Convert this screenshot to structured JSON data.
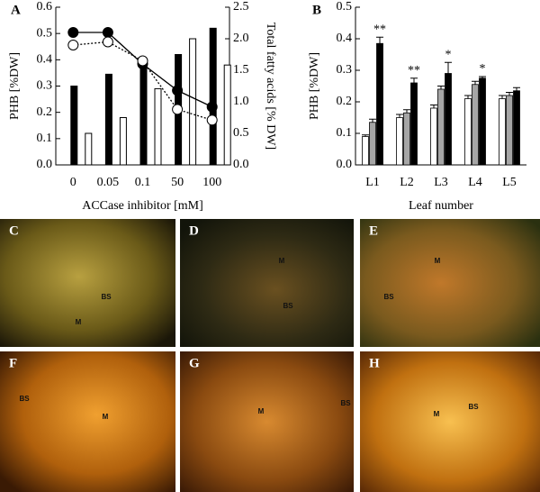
{
  "chart_data": [
    {
      "type": "combo",
      "panel": "A",
      "categories": [
        "0",
        "0.05",
        "0.1",
        "50",
        "100"
      ],
      "xlabel": "ACCase inhibitor [mM]",
      "ylabel": "PHB [%DW]",
      "y2label": "Total fatty acids [% DW]",
      "ylim": [
        0,
        0.6
      ],
      "yticks": [
        {
          "value": 0,
          "label": "0.0"
        },
        0.1,
        0.2,
        0.3,
        0.4,
        0.5,
        0.6
      ],
      "y2lim": [
        0,
        2.5
      ],
      "y2ticks": [
        {
          "value": 0,
          "label": "0.0"
        },
        0.5,
        {
          "value": 1,
          "label": "1.0"
        },
        1.5,
        {
          "value": 2,
          "label": "2.0"
        },
        2.5
      ],
      "series": [
        {
          "kind": "bar",
          "color": "#000000",
          "values": [
            0.3,
            0.345,
            0.4,
            0.42,
            0.52
          ]
        },
        {
          "kind": "bar",
          "color": "#ffffff",
          "values": [
            0.12,
            0.18,
            0.29,
            0.48,
            0.38
          ]
        },
        {
          "kind": "line",
          "axis": "y2",
          "color": "#000000",
          "values": [
            2.1,
            2.1,
            1.6,
            1.18,
            0.92
          ]
        },
        {
          "kind": "line",
          "axis": "y2",
          "color": "#ffffff",
          "values": [
            1.9,
            1.95,
            1.65,
            0.88,
            0.71
          ]
        }
      ]
    },
    {
      "type": "bar",
      "panel": "B",
      "categories": [
        "L1",
        "L2",
        "L3",
        "L4",
        "L5"
      ],
      "xlabel": "Leaf number",
      "ylabel": "PHB [%DW]",
      "ylim": [
        0,
        0.5
      ],
      "yticks": [
        {
          "value": 0,
          "label": "0.0"
        },
        0.1,
        0.2,
        0.3,
        0.4,
        0.5
      ],
      "series": [
        {
          "color": "#ffffff",
          "values": [
            0.09,
            0.15,
            0.18,
            0.21,
            0.21
          ],
          "errors": [
            0.005,
            0.01,
            0.01,
            0.01,
            0.01
          ]
        },
        {
          "color": "#a6a6a6",
          "values": [
            0.135,
            0.165,
            0.24,
            0.255,
            0.22
          ],
          "errors": [
            0.01,
            0.01,
            0.01,
            0.01,
            0.01
          ]
        },
        {
          "color": "#000000",
          "values": [
            0.385,
            0.26,
            0.29,
            0.275,
            0.235
          ],
          "errors": [
            0.02,
            0.015,
            0.035,
            0.005,
            0.01
          ],
          "annotations": [
            "**",
            "**",
            "*",
            "*",
            null
          ]
        }
      ]
    }
  ],
  "micrographs": [
    {
      "panel": "C",
      "labels": [
        "BS",
        "M"
      ]
    },
    {
      "panel": "D",
      "labels": [
        "M",
        "BS"
      ]
    },
    {
      "panel": "E",
      "labels": [
        "M",
        "BS"
      ]
    },
    {
      "panel": "F",
      "labels": [
        "BS",
        "M"
      ]
    },
    {
      "panel": "G",
      "labels": [
        "M",
        "BS"
      ]
    },
    {
      "panel": "H",
      "labels": [
        "M",
        "BS"
      ]
    }
  ]
}
